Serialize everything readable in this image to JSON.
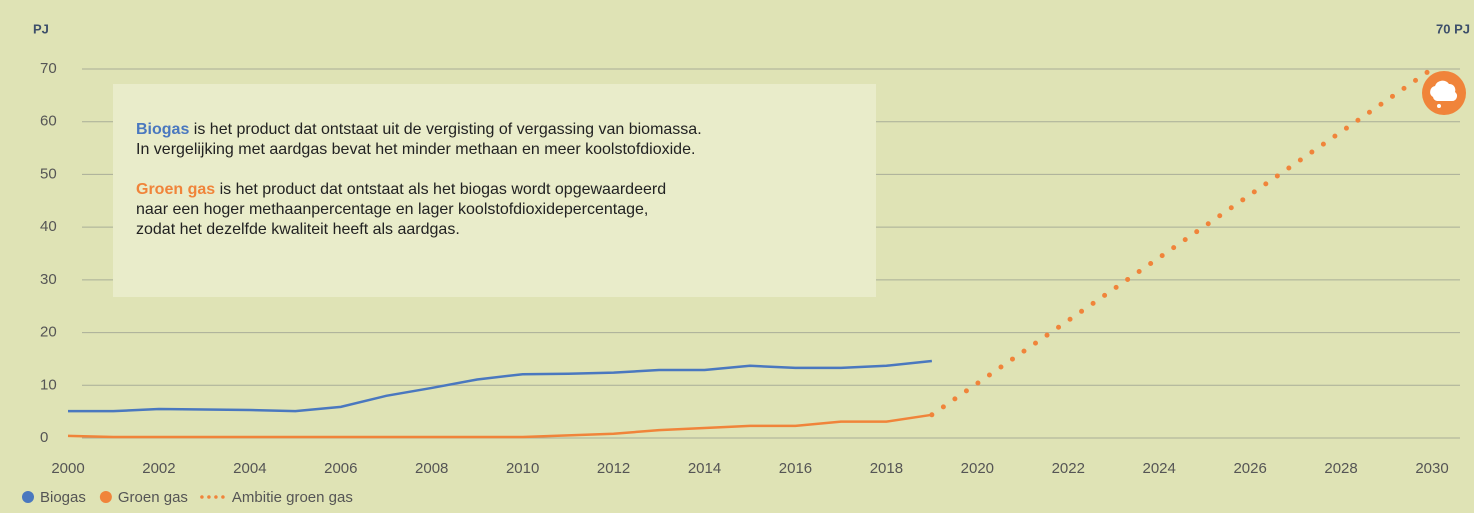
{
  "chart_data": {
    "type": "line",
    "y_label": "PJ",
    "annotation": "70 PJ",
    "xlim": [
      2000,
      2030
    ],
    "xticks": [
      2000,
      2002,
      2004,
      2006,
      2008,
      2010,
      2012,
      2014,
      2016,
      2018,
      2020,
      2022,
      2024,
      2026,
      2028,
      2030
    ],
    "ylim": [
      0,
      70
    ],
    "yticks": [
      0,
      10,
      20,
      30,
      40,
      50,
      60,
      70
    ],
    "grid": true,
    "legend": "bottom-left",
    "series": [
      {
        "name": "Biogas",
        "color": "#4a78bf",
        "style": "solid",
        "x": [
          2000,
          2001,
          2002,
          2003,
          2004,
          2005,
          2006,
          2007,
          2008,
          2009,
          2010,
          2011,
          2012,
          2013,
          2014,
          2015,
          2016,
          2017,
          2018,
          2019
        ],
        "values": [
          5.1,
          5.1,
          5.5,
          5.4,
          5.3,
          5.1,
          5.9,
          8.0,
          9.5,
          11.1,
          12.1,
          12.2,
          12.4,
          12.9,
          12.9,
          13.7,
          13.3,
          13.3,
          13.7,
          14.6
        ]
      },
      {
        "name": "Groen gas",
        "color": "#f0843a",
        "style": "solid",
        "x": [
          2000,
          2001,
          2002,
          2003,
          2004,
          2005,
          2006,
          2007,
          2008,
          2009,
          2010,
          2011,
          2012,
          2013,
          2014,
          2015,
          2016,
          2017,
          2018,
          2019
        ],
        "values": [
          0.4,
          0.2,
          0.2,
          0.2,
          0.2,
          0.2,
          0.2,
          0.2,
          0.2,
          0.2,
          0.2,
          0.5,
          0.8,
          1.5,
          1.9,
          2.3,
          2.3,
          3.1,
          3.1,
          4.4
        ]
      },
      {
        "name": "Ambitie groen gas",
        "color": "#f0843a",
        "style": "dotted",
        "x": [
          2019,
          2030
        ],
        "values": [
          4.4,
          70
        ]
      }
    ],
    "info_box": [
      {
        "term": "Biogas",
        "lines": [
          "is het product dat ontstaat uit de vergisting of vergassing van biomassa.",
          "In vergelijking met aardgas bevat het minder methaan en meer koolstofdioxide."
        ]
      },
      {
        "term": "Groen gas",
        "lines": [
          "is het product dat ontstaat als het biogas wordt opgewaardeerd",
          "naar een hoger methaanpercentage en lager koolstofdioxidepercentage,",
          "zodat het dezelfde kwaliteit heeft als aardgas."
        ]
      }
    ]
  }
}
